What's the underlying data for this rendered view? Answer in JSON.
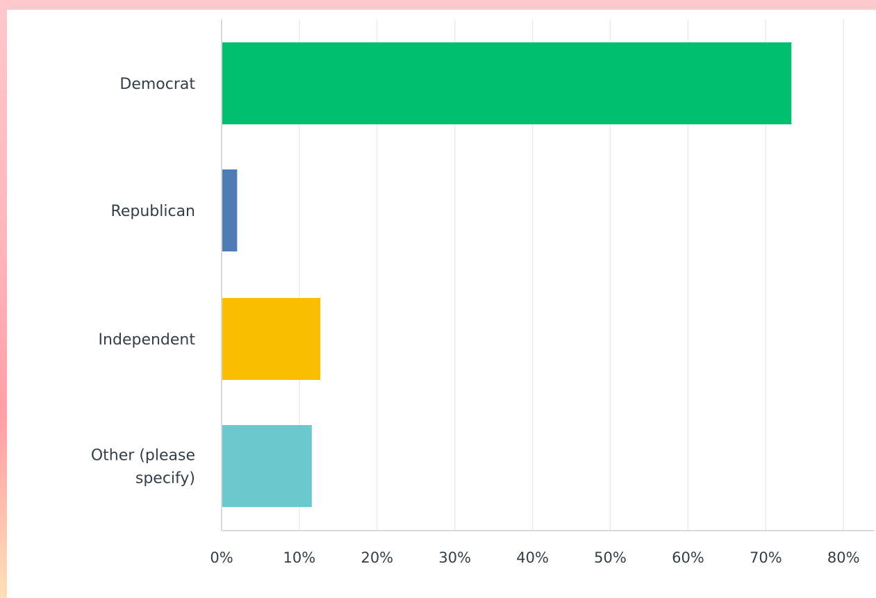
{
  "chart_data": {
    "type": "bar",
    "orientation": "horizontal",
    "categories": [
      "Democrat",
      "Republican",
      "Independent",
      "Other (please specify)"
    ],
    "category_lines": [
      [
        "Democrat"
      ],
      [
        "Republican"
      ],
      [
        "Independent"
      ],
      [
        "Other (please",
        "specify)"
      ]
    ],
    "values": [
      73.3,
      2.0,
      12.7,
      11.6
    ],
    "colors": [
      "#00bf6f",
      "#507cb6",
      "#f9be00",
      "#6bc8cd"
    ],
    "xlim": [
      0,
      84
    ],
    "xticks": [
      0,
      10,
      20,
      30,
      40,
      50,
      60,
      70,
      80
    ],
    "xtick_labels": [
      "0%",
      "10%",
      "20%",
      "30%",
      "40%",
      "50%",
      "60%",
      "70%",
      "80%"
    ],
    "grid": true,
    "title": "",
    "xlabel": "",
    "ylabel": ""
  }
}
